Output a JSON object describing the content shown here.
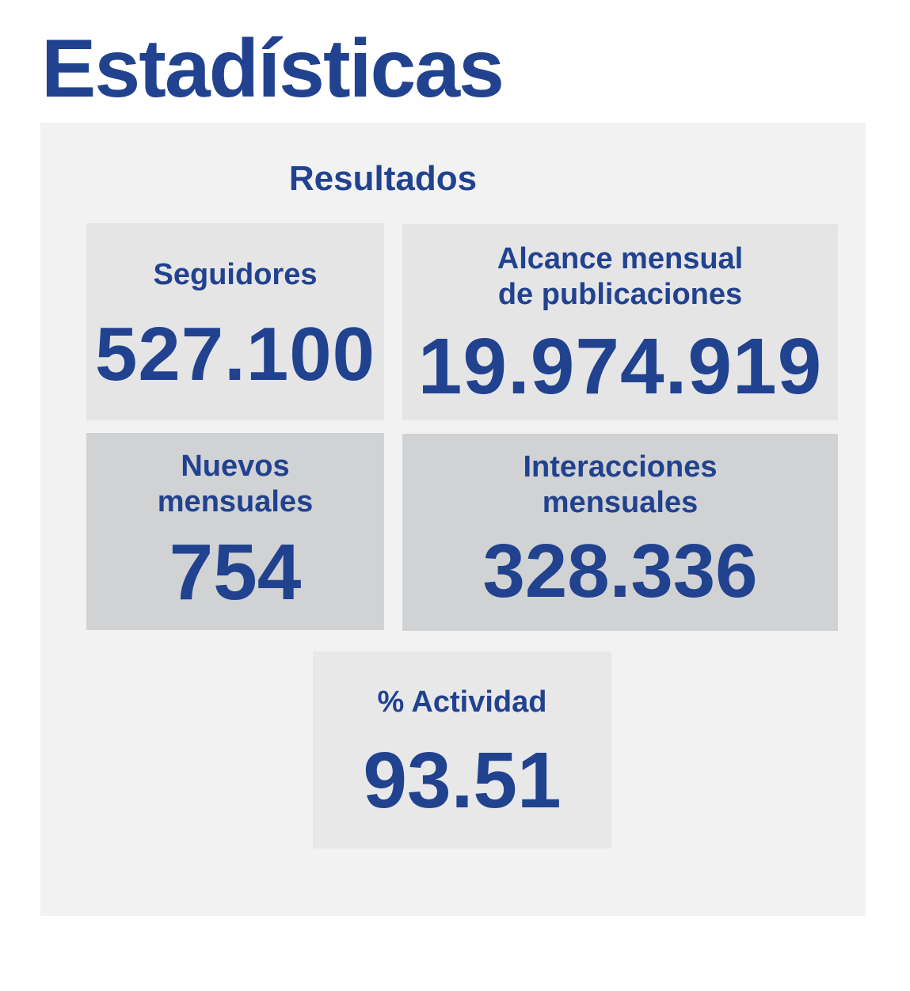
{
  "page": {
    "title": "Estadísticas"
  },
  "results": {
    "title": "Resultados",
    "cards": {
      "seguidores": {
        "label": "Seguidores",
        "value": "527.100"
      },
      "alcance": {
        "label": "Alcance mensual\nde publicaciones",
        "value": "19.974.919"
      },
      "nuevos": {
        "label": "Nuevos\nmensuales",
        "value": "754"
      },
      "interacciones": {
        "label": "Interacciones\nmensuales",
        "value": "328.336"
      },
      "actividad": {
        "label": "% Actividad",
        "value": "93.51"
      }
    }
  },
  "colors": {
    "text": "#21428f",
    "panel": "#f2f2f2",
    "card_light": "#e5e5e6",
    "card_dark": "#d1d2d4"
  }
}
